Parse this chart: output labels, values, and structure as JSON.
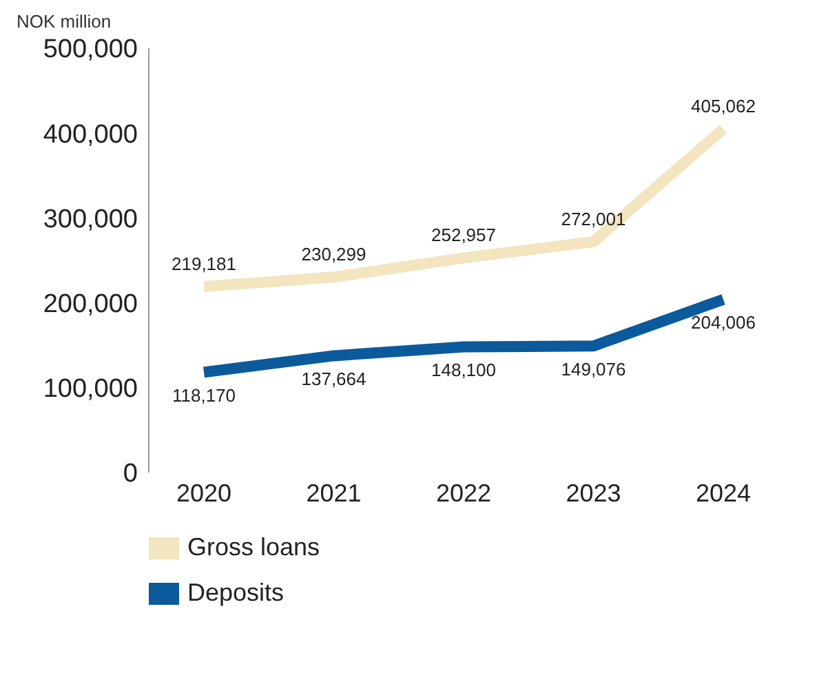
{
  "chart_data": {
    "type": "line",
    "ylabel": "NOK million",
    "categories": [
      "2020",
      "2021",
      "2022",
      "2023",
      "2024"
    ],
    "series": [
      {
        "name": "Gross loans",
        "color": "#f2e5c0",
        "values": [
          219181,
          230299,
          252957,
          272001,
          405062
        ],
        "value_labels": [
          "219,181",
          "230,299",
          "252,957",
          "272,001",
          "405,062"
        ]
      },
      {
        "name": "Deposits",
        "color": "#0b5a9b",
        "values": [
          118170,
          137664,
          148100,
          149076,
          204006
        ],
        "value_labels": [
          "118,170",
          "137,664",
          "148,100",
          "149,076",
          "204,006"
        ]
      }
    ],
    "ylim": [
      0,
      500000
    ],
    "yticks": [
      {
        "value": 0,
        "label": "0"
      },
      {
        "value": 100000,
        "label": "100,000"
      },
      {
        "value": 200000,
        "label": "200,000"
      },
      {
        "value": 300000,
        "label": "300,000"
      },
      {
        "value": 400000,
        "label": "400,000"
      },
      {
        "value": 500000,
        "label": "500,000"
      }
    ],
    "legend": "bottom",
    "grid": false,
    "marker": "none",
    "line_style": "solid"
  }
}
